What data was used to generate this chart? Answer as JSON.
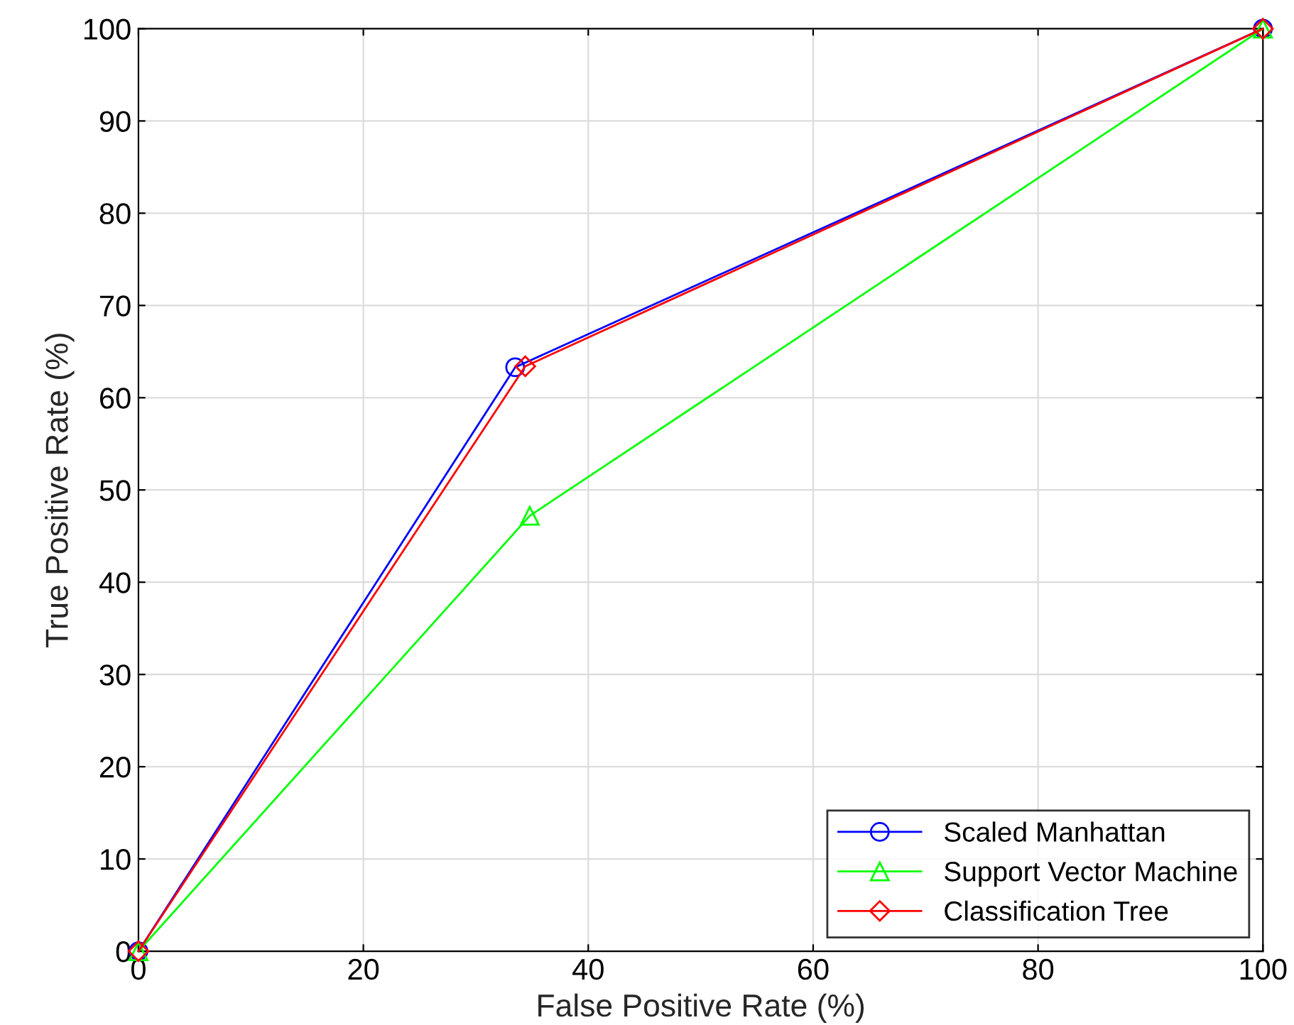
{
  "chart_data": {
    "type": "line",
    "xlabel": "False Positive Rate (%)",
    "ylabel": "True Positive Rate (%)",
    "xlim": [
      0,
      100
    ],
    "ylim": [
      0,
      100
    ],
    "xticks": [
      0,
      20,
      40,
      60,
      80,
      100
    ],
    "yticks": [
      0,
      10,
      20,
      30,
      40,
      50,
      60,
      70,
      80,
      90,
      100
    ],
    "grid": true,
    "legend": "bottom right",
    "series": [
      {
        "name": "Scaled Manhattan",
        "color": "#0000ff",
        "marker": "circle",
        "x": [
          0,
          33.5,
          100
        ],
        "values": [
          0,
          63.3,
          100
        ]
      },
      {
        "name": "Support Vector Machine",
        "color": "#00ff00",
        "marker": "triangle",
        "x": [
          0,
          34.8,
          100
        ],
        "values": [
          0,
          47.2,
          100
        ]
      },
      {
        "name": "Classification Tree",
        "color": "#ff0000",
        "marker": "diamond",
        "x": [
          0,
          34.4,
          100
        ],
        "values": [
          0,
          63.4,
          100
        ]
      }
    ]
  }
}
